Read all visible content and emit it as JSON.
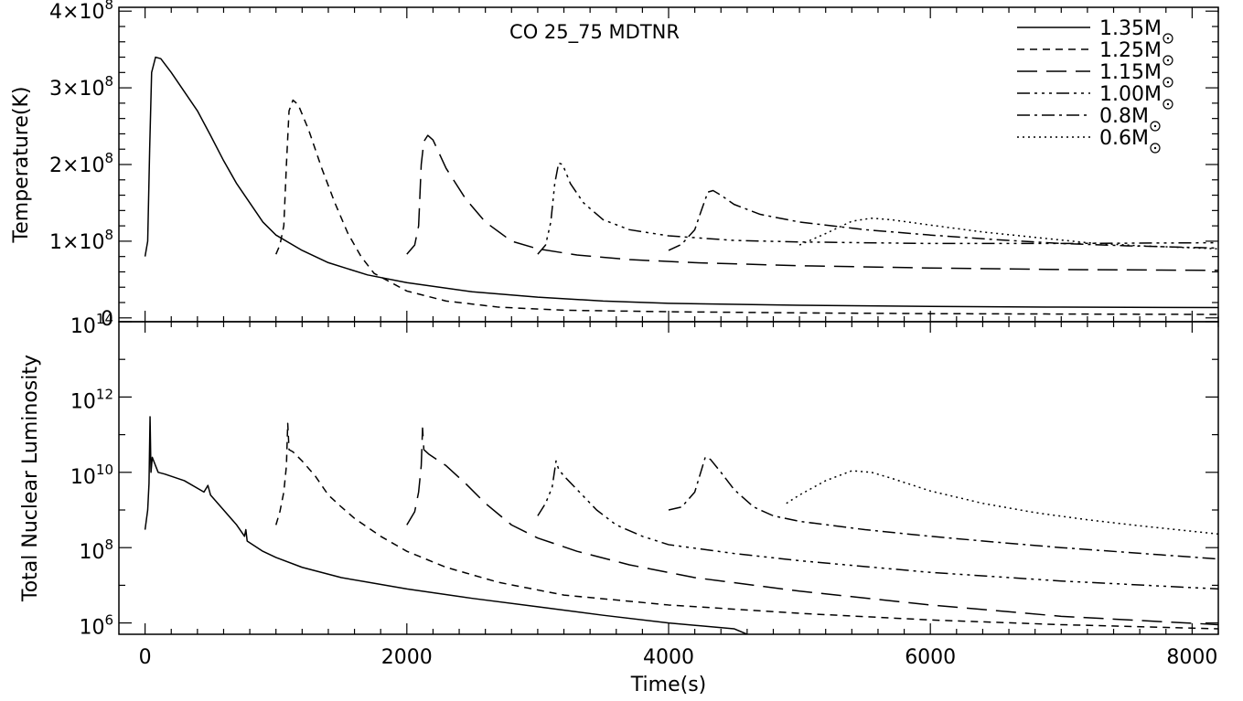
{
  "chart_data": [
    {
      "type": "line",
      "panel": "top",
      "title": "CO  25_75 MDTNR",
      "xlabel": "",
      "ylabel": "Temperature(K)",
      "xlim": [
        -200,
        8200
      ],
      "ylim": [
        -5000000,
        405000000
      ],
      "yticks": [
        {
          "value": 0,
          "mant": "0",
          "exp": ""
        },
        {
          "value": 100000000,
          "mant": "1×10",
          "exp": "8"
        },
        {
          "value": 200000000,
          "mant": "2×10",
          "exp": "8"
        },
        {
          "value": 300000000,
          "mant": "3×10",
          "exp": "8"
        },
        {
          "value": 400000000,
          "mant": "4×10",
          "exp": "8"
        }
      ],
      "legend_position": "top-right",
      "series": [
        {
          "name": "1.35M",
          "dash": "",
          "points": [
            [
              0,
              80000000
            ],
            [
              20,
              100000000
            ],
            [
              35,
              220000000
            ],
            [
              50,
              320000000
            ],
            [
              80,
              340000000
            ],
            [
              120,
              338000000
            ],
            [
              200,
              320000000
            ],
            [
              300,
              295000000
            ],
            [
              400,
              270000000
            ],
            [
              500,
              238000000
            ],
            [
              600,
              205000000
            ],
            [
              700,
              175000000
            ],
            [
              800,
              150000000
            ],
            [
              900,
              125000000
            ],
            [
              1000,
              108000000
            ],
            [
              1200,
              88000000
            ],
            [
              1400,
              72000000
            ],
            [
              1700,
              56000000
            ],
            [
              2000,
              46000000
            ],
            [
              2500,
              34000000
            ],
            [
              3000,
              27000000
            ],
            [
              3500,
              22000000
            ],
            [
              4000,
              19000000
            ],
            [
              5000,
              16500000
            ],
            [
              6000,
              15000000
            ],
            [
              7000,
              14000000
            ],
            [
              8200,
              13500000
            ]
          ]
        },
        {
          "name": "1.25M",
          "dash": "8,6",
          "points": [
            [
              1000,
              83000000
            ],
            [
              1030,
              95000000
            ],
            [
              1060,
              120000000
            ],
            [
              1080,
              200000000
            ],
            [
              1100,
              270000000
            ],
            [
              1130,
              284000000
            ],
            [
              1170,
              278000000
            ],
            [
              1250,
              245000000
            ],
            [
              1350,
              195000000
            ],
            [
              1450,
              150000000
            ],
            [
              1550,
              110000000
            ],
            [
              1650,
              80000000
            ],
            [
              1750,
              58000000
            ],
            [
              2000,
              35000000
            ],
            [
              2300,
              22000000
            ],
            [
              2700,
              14000000
            ],
            [
              3200,
              10000000
            ],
            [
              4000,
              8000000
            ],
            [
              5000,
              6500000
            ],
            [
              6000,
              5500000
            ],
            [
              7000,
              5000000
            ],
            [
              8200,
              4500000
            ]
          ]
        },
        {
          "name": "1.15M",
          "dash": "22,10",
          "points": [
            [
              2000,
              83000000
            ],
            [
              2060,
              95000000
            ],
            [
              2090,
              120000000
            ],
            [
              2110,
              200000000
            ],
            [
              2130,
              230000000
            ],
            [
              2160,
              238000000
            ],
            [
              2200,
              232000000
            ],
            [
              2300,
              195000000
            ],
            [
              2450,
              155000000
            ],
            [
              2600,
              125000000
            ],
            [
              2800,
              100000000
            ],
            [
              3000,
              90000000
            ],
            [
              3300,
              82000000
            ],
            [
              3700,
              76000000
            ],
            [
              4200,
              72000000
            ],
            [
              5000,
              68000000
            ],
            [
              6000,
              65000000
            ],
            [
              7000,
              63000000
            ],
            [
              8200,
              62000000
            ]
          ]
        },
        {
          "name": "1.00M",
          "dash": "14,5,3,5,3,5,3,5",
          "points": [
            [
              3000,
              83000000
            ],
            [
              3060,
              95000000
            ],
            [
              3100,
              125000000
            ],
            [
              3130,
              175000000
            ],
            [
              3160,
              202000000
            ],
            [
              3190,
              200000000
            ],
            [
              3250,
              175000000
            ],
            [
              3350,
              150000000
            ],
            [
              3500,
              128000000
            ],
            [
              3700,
              115000000
            ],
            [
              4000,
              107000000
            ],
            [
              4500,
              101000000
            ],
            [
              5000,
              99000000
            ],
            [
              6000,
              97000000
            ],
            [
              7000,
              97000000
            ],
            [
              8200,
              98000000
            ]
          ]
        },
        {
          "name": "0.8M",
          "dash": "14,5,3,5",
          "points": [
            [
              4000,
              88000000
            ],
            [
              4100,
              96000000
            ],
            [
              4200,
              115000000
            ],
            [
              4250,
              140000000
            ],
            [
              4300,
              164000000
            ],
            [
              4340,
              166000000
            ],
            [
              4400,
              160000000
            ],
            [
              4500,
              148000000
            ],
            [
              4700,
              135000000
            ],
            [
              5000,
              125000000
            ],
            [
              5500,
              115000000
            ],
            [
              6000,
              108000000
            ],
            [
              6500,
              102000000
            ],
            [
              7000,
              97000000
            ],
            [
              7500,
              94000000
            ],
            [
              8200,
              91000000
            ]
          ]
        },
        {
          "name": "0.6M",
          "dash": "2,4",
          "points": [
            [
              5000,
              95000000
            ],
            [
              5200,
              110000000
            ],
            [
              5400,
              126000000
            ],
            [
              5550,
              130000000
            ],
            [
              5700,
              128000000
            ],
            [
              6000,
              121000000
            ],
            [
              6400,
              112000000
            ],
            [
              6800,
              105000000
            ],
            [
              7200,
              98000000
            ],
            [
              7600,
              94000000
            ],
            [
              8200,
              90000000
            ]
          ]
        }
      ]
    },
    {
      "type": "line",
      "panel": "bottom",
      "title": "",
      "xlabel": "Time(s)",
      "ylabel": "Total Nuclear Luminosity",
      "log_y": true,
      "xlim": [
        -200,
        8200
      ],
      "ylim": [
        500000,
        100000000000000
      ],
      "xticks": [
        {
          "value": 0,
          "label": "0"
        },
        {
          "value": 2000,
          "label": "2000"
        },
        {
          "value": 4000,
          "label": "4000"
        },
        {
          "value": 6000,
          "label": "6000"
        },
        {
          "value": 8000,
          "label": "8000"
        }
      ],
      "yticks": [
        {
          "value": 1000000,
          "mant": "10",
          "exp": "6"
        },
        {
          "value": 100000000,
          "mant": "10",
          "exp": "8"
        },
        {
          "value": 10000000000,
          "mant": "10",
          "exp": "10"
        },
        {
          "value": 1000000000000,
          "mant": "10",
          "exp": "12"
        },
        {
          "value": 100000000000000,
          "mant": "10",
          "exp": "14"
        }
      ],
      "series": [
        {
          "name": "1.35M",
          "dash": "",
          "points": [
            [
              0,
              300000000
            ],
            [
              20,
              1000000000
            ],
            [
              30,
              5000000000
            ],
            [
              38,
              300000000000
            ],
            [
              45,
              10000000000
            ],
            [
              55,
              25000000000
            ],
            [
              80,
              15000000000
            ],
            [
              100,
              10000000000
            ],
            [
              150,
              9000000000
            ],
            [
              300,
              6000000000
            ],
            [
              450,
              3000000000
            ],
            [
              480,
              4500000000
            ],
            [
              500,
              2500000000
            ],
            [
              600,
              1000000000
            ],
            [
              700,
              400000000
            ],
            [
              760,
              200000000
            ],
            [
              770,
              300000000
            ],
            [
              780,
              150000000
            ],
            [
              900,
              80000000
            ],
            [
              1000,
              55000000
            ],
            [
              1200,
              30000000
            ],
            [
              1500,
              16000000
            ],
            [
              2000,
              8000000
            ],
            [
              2500,
              4500000
            ],
            [
              3000,
              2700000
            ],
            [
              3500,
              1600000
            ],
            [
              4000,
              1000000
            ],
            [
              4500,
              700000
            ],
            [
              4600,
              500000
            ]
          ]
        },
        {
          "name": "1.25M",
          "dash": "8,6",
          "points": [
            [
              1000,
              400000000
            ],
            [
              1030,
              900000000
            ],
            [
              1060,
              3000000000
            ],
            [
              1080,
              15000000000
            ],
            [
              1090,
              200000000000
            ],
            [
              1100,
              40000000000
            ],
            [
              1130,
              35000000000
            ],
            [
              1200,
              20000000000
            ],
            [
              1300,
              8000000000
            ],
            [
              1400,
              2500000000
            ],
            [
              1500,
              1200000000
            ],
            [
              1600,
              600000000
            ],
            [
              1800,
              200000000
            ],
            [
              2000,
              80000000
            ],
            [
              2300,
              30000000
            ],
            [
              2700,
              12000000
            ],
            [
              3200,
              5500000
            ],
            [
              4000,
              3000000
            ],
            [
              5000,
              1800000
            ],
            [
              6000,
              1200000
            ],
            [
              7000,
              900000
            ],
            [
              8200,
              700000
            ]
          ]
        },
        {
          "name": "1.15M",
          "dash": "22,10",
          "points": [
            [
              2000,
              400000000
            ],
            [
              2060,
              900000000
            ],
            [
              2090,
              3000000000
            ],
            [
              2110,
              15000000000
            ],
            [
              2120,
              150000000000
            ],
            [
              2130,
              40000000000
            ],
            [
              2170,
              30000000000
            ],
            [
              2300,
              15000000000
            ],
            [
              2450,
              5000000000
            ],
            [
              2600,
              1500000000
            ],
            [
              2800,
              400000000
            ],
            [
              3000,
              180000000
            ],
            [
              3300,
              80000000
            ],
            [
              3700,
              35000000
            ],
            [
              4200,
              16000000
            ],
            [
              5000,
              7000000
            ],
            [
              6000,
              3000000
            ],
            [
              7000,
              1500000
            ],
            [
              8200,
              900000
            ]
          ]
        },
        {
          "name": "1.00M",
          "dash": "14,5,3,5,3,5,3,5",
          "points": [
            [
              3000,
              700000000
            ],
            [
              3060,
              1500000000
            ],
            [
              3110,
              4000000000
            ],
            [
              3140,
              20000000000
            ],
            [
              3160,
              12000000000
            ],
            [
              3200,
              8000000000
            ],
            [
              3300,
              3500000000
            ],
            [
              3450,
              1000000000
            ],
            [
              3600,
              400000000
            ],
            [
              3800,
              200000000
            ],
            [
              4000,
              120000000
            ],
            [
              4500,
              70000000
            ],
            [
              5000,
              45000000
            ],
            [
              6000,
              22000000
            ],
            [
              7000,
              13000000
            ],
            [
              8200,
              8000000
            ]
          ]
        },
        {
          "name": "0.8M",
          "dash": "14,5,3,5",
          "points": [
            [
              4000,
              1000000000
            ],
            [
              4100,
              1200000000
            ],
            [
              4200,
              3000000000
            ],
            [
              4280,
              25000000000
            ],
            [
              4320,
              22000000000
            ],
            [
              4400,
              10000000000
            ],
            [
              4500,
              3500000000
            ],
            [
              4650,
              1200000000
            ],
            [
              4800,
              700000000
            ],
            [
              5000,
              500000000
            ],
            [
              5500,
              300000000
            ],
            [
              6000,
              200000000
            ],
            [
              6500,
              140000000
            ],
            [
              7000,
              100000000
            ],
            [
              7500,
              75000000
            ],
            [
              8200,
              50000000
            ]
          ]
        },
        {
          "name": "0.6M",
          "dash": "2,4",
          "points": [
            [
              4900,
              1500000000
            ],
            [
              5000,
              2500000000
            ],
            [
              5200,
              6000000000
            ],
            [
              5400,
              11000000000
            ],
            [
              5550,
              10000000000
            ],
            [
              5700,
              7000000000
            ],
            [
              6000,
              3200000000
            ],
            [
              6400,
              1500000000
            ],
            [
              6800,
              850000000
            ],
            [
              7200,
              550000000
            ],
            [
              7600,
              380000000
            ],
            [
              8200,
              230000000
            ]
          ]
        }
      ]
    }
  ]
}
